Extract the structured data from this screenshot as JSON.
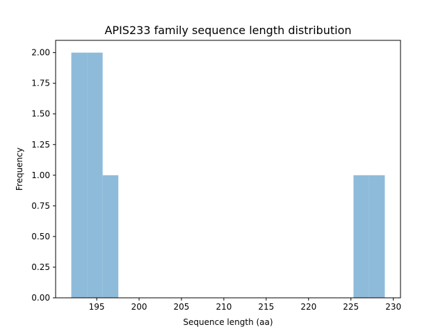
{
  "chart_data": {
    "type": "bar",
    "title": "APIS233 family sequence length distribution",
    "xlabel": "Sequence length (aa)",
    "ylabel": "Frequency",
    "xlim": [
      190.15,
      230.85
    ],
    "ylim": [
      0,
      2.1
    ],
    "xticks": [
      195,
      200,
      205,
      210,
      215,
      220,
      225,
      230
    ],
    "yticks": [
      0.0,
      0.25,
      0.5,
      0.75,
      1.0,
      1.25,
      1.5,
      1.75,
      2.0
    ],
    "ytick_labels": [
      "0.00",
      "0.25",
      "0.50",
      "0.75",
      "1.00",
      "1.25",
      "1.50",
      "1.75",
      "2.00"
    ],
    "bar_color": "#8fbbda",
    "bins": [
      {
        "x0": 192.0,
        "x1": 193.85,
        "count": 2
      },
      {
        "x0": 193.85,
        "x1": 195.7,
        "count": 2
      },
      {
        "x0": 195.7,
        "x1": 197.55,
        "count": 1
      },
      {
        "x0": 197.55,
        "x1": 199.4,
        "count": 0
      },
      {
        "x0": 199.4,
        "x1": 201.25,
        "count": 0
      },
      {
        "x0": 201.25,
        "x1": 203.1,
        "count": 0
      },
      {
        "x0": 203.1,
        "x1": 204.95,
        "count": 0
      },
      {
        "x0": 204.95,
        "x1": 206.8,
        "count": 0
      },
      {
        "x0": 206.8,
        "x1": 208.65,
        "count": 0
      },
      {
        "x0": 208.65,
        "x1": 210.5,
        "count": 0
      },
      {
        "x0": 210.5,
        "x1": 212.35,
        "count": 0
      },
      {
        "x0": 212.35,
        "x1": 214.2,
        "count": 0
      },
      {
        "x0": 214.2,
        "x1": 216.05,
        "count": 0
      },
      {
        "x0": 216.05,
        "x1": 217.9,
        "count": 0
      },
      {
        "x0": 217.9,
        "x1": 219.75,
        "count": 0
      },
      {
        "x0": 219.75,
        "x1": 221.6,
        "count": 0
      },
      {
        "x0": 221.6,
        "x1": 223.45,
        "count": 0
      },
      {
        "x0": 223.45,
        "x1": 225.3,
        "count": 0
      },
      {
        "x0": 225.3,
        "x1": 227.15,
        "count": 1
      },
      {
        "x0": 227.15,
        "x1": 229.0,
        "count": 1
      }
    ]
  }
}
